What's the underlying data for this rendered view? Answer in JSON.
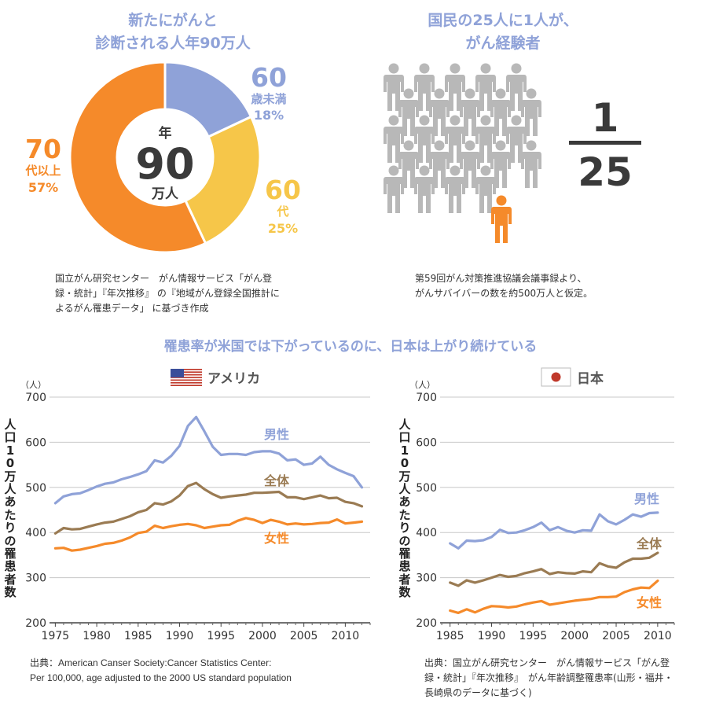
{
  "colors": {
    "blue": "#8fa2d8",
    "yellow": "#f6c649",
    "orange": "#f58a2a",
    "brown": "#9a7b53",
    "gray": "#b8b8b8",
    "dark": "#3a3a3a",
    "grid": "#c8c8c8",
    "flag_red": "#c0392b",
    "flag_blue": "#3b4f9a"
  },
  "donut_section": {
    "title_line1": "新たにがんと",
    "title_line2": "診断される人年90万人",
    "center_top": "年",
    "center_value": "90",
    "center_bottom": "万人",
    "note_lines": [
      "国立がん研究センター　がん情報サービス「がん登",
      "録・統計」『年次推移』 の『地域がん登録全国推計に",
      "よるがん罹患データ」 に基づき作成"
    ]
  },
  "people_section": {
    "title_line1": "国民の25人に1人が、",
    "title_line2": "がん経験者",
    "fraction_numerator": "1",
    "fraction_denominator": "25",
    "note_lines": [
      "第59回がん対策推進協議会議事録より、",
      "がんサバイバーの数を約500万人と仮定。"
    ]
  },
  "main_title": "罹患率が米国では下がっているのに、日本は上がり続けている",
  "y_axis_label": "人口10万人あたりの罹患者数",
  "usa_note_lines": [
    "出典：American Canser Society:Cancer Statistics Center:",
    "Per 100,000, age adjusted to the 2000 US standard population"
  ],
  "japan_note_lines": [
    "出典：国立がん研究センター　がん情報サービス「がん登",
    "録・統計」『年次推移』　がん年齢調整罹患率(山形・福井・",
    "長崎県のデータに基づく)"
  ],
  "chart_data": [
    {
      "type": "pie",
      "title": "新たにがんと診断される人年90万人",
      "slices": [
        {
          "label_line1": "60",
          "label_line2": "歳未満",
          "pct_label": "18%",
          "value": 18
        },
        {
          "label_line1": "60",
          "label_line2": "代",
          "pct_label": "25%",
          "value": 25
        },
        {
          "label_line1": "70",
          "label_line2": "代以上",
          "pct_label": "57%",
          "value": 57
        }
      ]
    },
    {
      "type": "line",
      "title": "アメリカ",
      "unit": "（人）",
      "ylim": [
        200,
        700
      ],
      "yticks": [
        200,
        300,
        400,
        500,
        600,
        700
      ],
      "xlim": [
        1974.3,
        1975.0,
        2013.0
      ],
      "xticks": [
        1975,
        1980,
        1985,
        1990,
        1995,
        2000,
        2005,
        2010
      ],
      "x": [
        1975,
        1976,
        1977,
        1978,
        1979,
        1980,
        1981,
        1982,
        1983,
        1984,
        1985,
        1986,
        1987,
        1988,
        1989,
        1990,
        1991,
        1992,
        1993,
        1994,
        1995,
        1996,
        1997,
        1998,
        1999,
        2000,
        2001,
        2002,
        2003,
        2004,
        2005,
        2006,
        2007,
        2008,
        2009,
        2010,
        2011,
        2012
      ],
      "series": [
        {
          "name": "男性",
          "values": [
            465,
            480,
            485,
            487,
            494,
            502,
            508,
            511,
            518,
            523,
            529,
            536,
            560,
            555,
            570,
            592,
            636,
            656,
            624,
            590,
            572,
            574,
            574,
            572,
            578,
            580,
            580,
            575,
            560,
            562,
            550,
            553,
            568,
            550,
            540,
            532,
            525,
            500
          ]
        },
        {
          "name": "全体",
          "values": [
            398,
            410,
            407,
            408,
            413,
            418,
            422,
            424,
            430,
            436,
            445,
            450,
            465,
            462,
            469,
            482,
            503,
            510,
            496,
            485,
            477,
            480,
            482,
            484,
            488,
            488,
            489,
            490,
            478,
            478,
            474,
            478,
            482,
            476,
            477,
            468,
            465,
            458
          ]
        },
        {
          "name": "女性",
          "values": [
            365,
            366,
            360,
            362,
            366,
            370,
            375,
            377,
            382,
            389,
            399,
            402,
            415,
            410,
            414,
            417,
            419,
            416,
            410,
            413,
            416,
            417,
            426,
            432,
            428,
            421,
            428,
            424,
            418,
            420,
            418,
            419,
            421,
            422,
            429,
            420,
            422,
            424
          ]
        }
      ]
    },
    {
      "type": "line",
      "title": "日本",
      "unit": "（人）",
      "ylim": [
        200,
        700
      ],
      "yticks": [
        200,
        300,
        400,
        500,
        600,
        700
      ],
      "xlim": [
        1983.8,
        2012.0
      ],
      "xticks": [
        1985,
        1990,
        1995,
        2000,
        2005,
        2010
      ],
      "x": [
        1985,
        1986,
        1987,
        1988,
        1989,
        1990,
        1991,
        1992,
        1993,
        1994,
        1995,
        1996,
        1997,
        1998,
        1999,
        2000,
        2001,
        2002,
        2003,
        2004,
        2005,
        2006,
        2007,
        2008,
        2009,
        2010
      ],
      "series": [
        {
          "name": "男性",
          "values": [
            376,
            365,
            382,
            381,
            383,
            390,
            406,
            399,
            400,
            405,
            412,
            422,
            405,
            412,
            404,
            400,
            405,
            404,
            440,
            425,
            418,
            428,
            440,
            435,
            443,
            444
          ]
        },
        {
          "name": "全体",
          "values": [
            289,
            282,
            294,
            289,
            294,
            300,
            306,
            302,
            304,
            310,
            314,
            319,
            308,
            312,
            310,
            309,
            314,
            312,
            332,
            325,
            322,
            334,
            342,
            342,
            344,
            355
          ]
        },
        {
          "name": "女性",
          "values": [
            227,
            222,
            230,
            223,
            231,
            237,
            236,
            234,
            236,
            241,
            245,
            248,
            240,
            243,
            246,
            249,
            251,
            253,
            257,
            257,
            258,
            268,
            274,
            278,
            277,
            293
          ]
        }
      ]
    }
  ]
}
